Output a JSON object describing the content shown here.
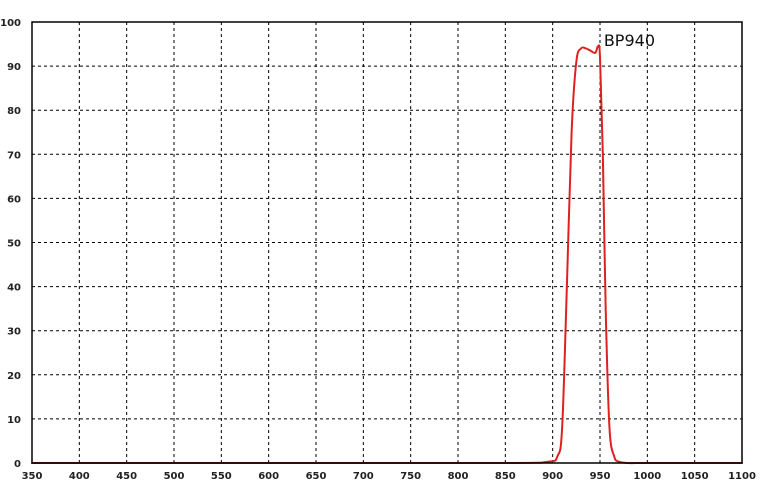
{
  "chart_data": {
    "type": "line",
    "title": "",
    "xlabel": "",
    "ylabel": "",
    "xlim": [
      350,
      1100
    ],
    "ylim": [
      0,
      100
    ],
    "x_ticks": [
      350,
      400,
      450,
      500,
      550,
      600,
      650,
      700,
      750,
      800,
      850,
      900,
      950,
      1000,
      1050,
      1100
    ],
    "y_ticks": [
      0,
      10,
      20,
      30,
      40,
      50,
      60,
      70,
      80,
      90,
      100
    ],
    "grid": true,
    "line_color": "#e02020",
    "series": [
      {
        "name": "BP940",
        "x": [
          350,
          600,
          850,
          895,
          905,
          910,
          915,
          920,
          925,
          930,
          935,
          940,
          945,
          948,
          950,
          953,
          956,
          960,
          965,
          970,
          980,
          1000,
          1100
        ],
        "y": [
          0,
          0,
          0,
          0.3,
          1.5,
          8,
          40,
          75,
          91,
          94,
          94,
          93.5,
          93,
          94.5,
          92,
          70,
          35,
          8,
          1.5,
          0.3,
          0,
          0,
          0
        ]
      }
    ],
    "annotations": [
      {
        "text": "BP940",
        "x": 953,
        "y": 95
      }
    ]
  }
}
